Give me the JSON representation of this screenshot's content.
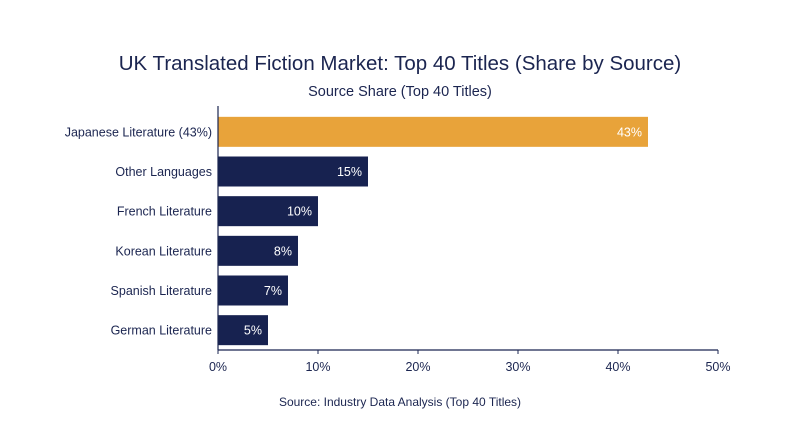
{
  "title": "UK Translated Fiction Market: Top 40 Titles (Share by Source)",
  "subtitle": "Source Share (Top 40 Titles)",
  "source_note": "Source: Industry Data Analysis (Top 40 Titles)",
  "colors": {
    "highlight": "#e8a33a",
    "bar": "#172250",
    "text": "#1b2550",
    "value_label": "#ffffff"
  },
  "chart_data": {
    "type": "bar",
    "orientation": "horizontal",
    "title": "UK Translated Fiction Market: Top 40 Titles (Share by Source)",
    "subtitle": "Source Share (Top 40 Titles)",
    "categories": [
      "Japanese Literature (43%)",
      "Other Languages",
      "French Literature",
      "Korean Literature",
      "Spanish Literature",
      "German Literature"
    ],
    "values": [
      43,
      15,
      10,
      8,
      7,
      5
    ],
    "value_labels": [
      "43%",
      "15%",
      "10%",
      "8%",
      "7%",
      "5%"
    ],
    "highlight_index": 0,
    "xlim": [
      0,
      50
    ],
    "xticks": [
      0,
      10,
      20,
      30,
      40,
      50
    ],
    "xtick_labels": [
      "0%",
      "10%",
      "20%",
      "30%",
      "40%",
      "50%"
    ],
    "xlabel": "",
    "ylabel": "",
    "grid": false,
    "legend": "none"
  }
}
